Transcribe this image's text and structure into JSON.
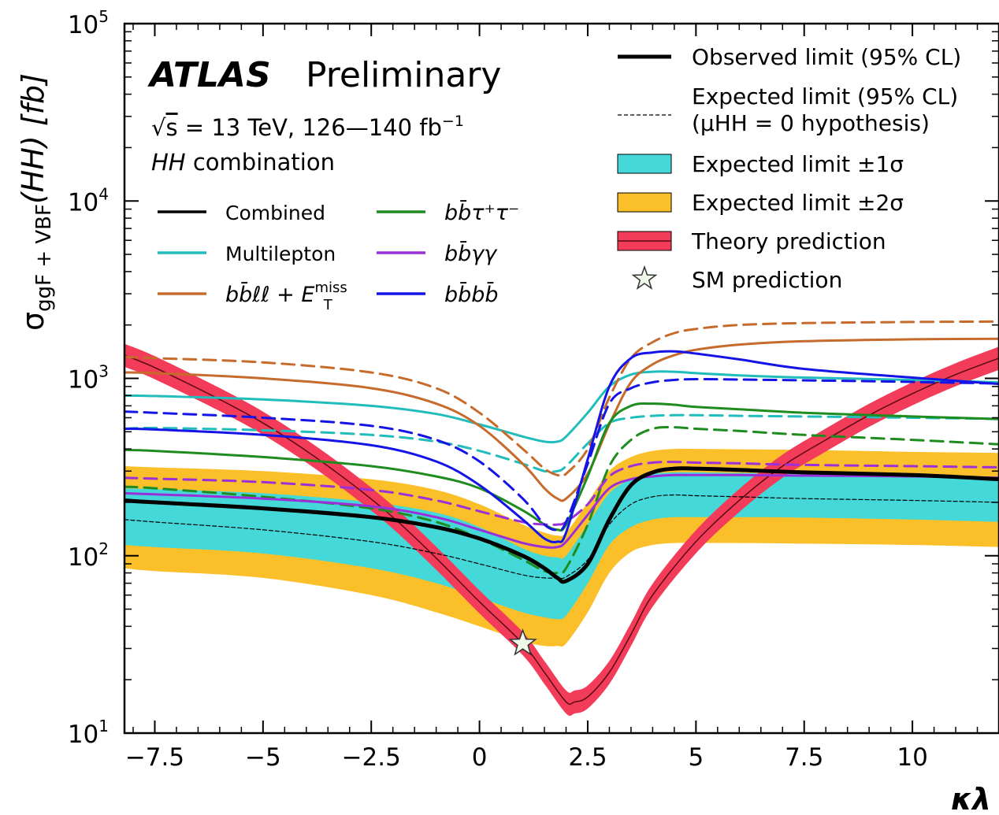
{
  "chart_data": {
    "type": "line",
    "experiment": "ATLAS",
    "status": "Preliminary",
    "energy_label": "= 13 TeV, 126—140 fb",
    "sqrt_symbol": "√",
    "sqrt_var": "s",
    "lumi_exp": "−1",
    "analysis_label": "combination",
    "analysis_italic": "HH",
    "xlabel": "κλ",
    "ylabel": "σggF + VBF(HH) [fb]",
    "ylabel_parts": {
      "sigma": "σ",
      "sub": "ggF + VBF",
      "paren": "(HH) [fb]"
    },
    "xlim": [
      -8.2,
      12.0
    ],
    "ylim": [
      10,
      100000
    ],
    "yscale": "log",
    "xticks": [
      -7.5,
      -5,
      -2.5,
      0,
      2.5,
      5,
      7.5,
      10
    ],
    "xtick_labels": [
      "−7.5",
      "−5",
      "−2.5",
      "0",
      "2.5",
      "5",
      "7.5",
      "10"
    ],
    "yticks": [
      10,
      100,
      1000,
      10000,
      100000
    ],
    "ytick_labels": [
      {
        "base": "10",
        "exp": "1"
      },
      {
        "base": "10",
        "exp": "2"
      },
      {
        "base": "10",
        "exp": "3"
      },
      {
        "base": "10",
        "exp": "4"
      },
      {
        "base": "10",
        "exp": "5"
      }
    ],
    "x": [
      -8.2,
      -7.5,
      -5,
      -2.5,
      -1,
      0,
      1,
      1.5,
      1.8,
      2,
      2.5,
      3,
      3.5,
      4,
      4.5,
      5,
      6,
      7.5,
      10,
      12
    ],
    "bands": {
      "exp_2sigma": {
        "lo": [
          85,
          82,
          75,
          60,
          48,
          40,
          33,
          31,
          31,
          32,
          48,
          80,
          105,
          115,
          118,
          118,
          118,
          117,
          115,
          112
        ],
        "hi": [
          320,
          315,
          300,
          270,
          235,
          195,
          150,
          135,
          130,
          135,
          200,
          300,
          360,
          390,
          400,
          400,
          398,
          395,
          385,
          380
        ],
        "color": "#fbbf2a"
      },
      "exp_1sigma": {
        "lo": [
          115,
          112,
          103,
          85,
          70,
          58,
          48,
          45,
          44,
          46,
          70,
          115,
          145,
          160,
          165,
          165,
          165,
          164,
          160,
          155
        ],
        "hi": [
          240,
          237,
          225,
          200,
          175,
          145,
          110,
          100,
          98,
          100,
          150,
          225,
          270,
          290,
          295,
          295,
          293,
          290,
          280,
          275
        ],
        "color": "#44d8d8"
      }
    },
    "theory": {
      "x": [
        -8.2,
        -7.5,
        -6,
        -5,
        -4,
        -3,
        -2,
        -1,
        0,
        1,
        1.5,
        2,
        2.2,
        2.5,
        3,
        3.5,
        4,
        5,
        6,
        7,
        8,
        9,
        10,
        11,
        12
      ],
      "values": [
        1350,
        1150,
        760,
        560,
        390,
        260,
        165,
        97,
        55,
        32,
        22,
        15,
        15,
        16,
        22,
        36,
        60,
        120,
        205,
        320,
        450,
        620,
        820,
        1050,
        1300
      ],
      "color": "#f23c5a"
    },
    "series": [
      {
        "name": "Observed limit (95% CL)",
        "color": "#000000",
        "style": "solid",
        "width": 5,
        "values": [
          205,
          200,
          185,
          165,
          145,
          125,
          100,
          85,
          75,
          72,
          90,
          160,
          250,
          295,
          310,
          310,
          305,
          295,
          285,
          270
        ]
      },
      {
        "name": "Expected limit (95% CL) (μHH = 0 hypothesis)",
        "color": "#000000",
        "style": "dash",
        "width": 1.2,
        "values": [
          160,
          155,
          140,
          120,
          103,
          90,
          78,
          75,
          75,
          76,
          95,
          150,
          195,
          215,
          220,
          218,
          215,
          210,
          205,
          200
        ]
      },
      {
        "name": "Multilepton",
        "color": "#21bdbd",
        "style": "solid",
        "width": 3,
        "values": [
          800,
          795,
          760,
          700,
          630,
          550,
          470,
          440,
          440,
          470,
          640,
          900,
          1050,
          1090,
          1090,
          1070,
          1040,
          1010,
          980,
          950
        ]
      },
      {
        "name": "Multilepton",
        "color": "#21bdbd",
        "style": "dash",
        "width": 3,
        "values": [
          520,
          525,
          510,
          480,
          440,
          390,
          330,
          300,
          300,
          320,
          430,
          560,
          600,
          615,
          620,
          620,
          615,
          610,
          600,
          590
        ]
      },
      {
        "name": "bbℓℓ + E_T^miss",
        "color": "#c76b2c",
        "style": "solid",
        "width": 3,
        "values": [
          1080,
          1070,
          1000,
          880,
          720,
          540,
          330,
          240,
          210,
          210,
          290,
          550,
          950,
          1200,
          1350,
          1450,
          1550,
          1620,
          1660,
          1670
        ]
      },
      {
        "name": "bbℓℓ + E_T^miss",
        "color": "#c76b2c",
        "style": "dash",
        "width": 3,
        "values": [
          1320,
          1300,
          1230,
          1080,
          880,
          640,
          400,
          310,
          285,
          290,
          400,
          780,
          1300,
          1600,
          1800,
          1900,
          2000,
          2050,
          2080,
          2090
        ]
      },
      {
        "name": "bbττ",
        "color": "#1e8c1e",
        "style": "solid",
        "width": 3,
        "values": [
          395,
          390,
          360,
          320,
          280,
          240,
          180,
          150,
          140,
          150,
          280,
          560,
          700,
          720,
          710,
          690,
          670,
          640,
          610,
          590
        ]
      },
      {
        "name": "bbττ",
        "color": "#1e8c1e",
        "style": "dash",
        "width": 3,
        "values": [
          245,
          240,
          215,
          185,
          155,
          125,
          95,
          82,
          80,
          85,
          150,
          320,
          450,
          520,
          530,
          520,
          505,
          480,
          450,
          425
        ]
      },
      {
        "name": "bbγγ",
        "color": "#9b30d9",
        "style": "solid",
        "width": 3,
        "values": [
          225,
          222,
          210,
          190,
          165,
          140,
          118,
          112,
          112,
          120,
          170,
          240,
          270,
          280,
          285,
          285,
          285,
          283,
          280,
          275
        ]
      },
      {
        "name": "bbγγ",
        "color": "#9b30d9",
        "style": "dash",
        "width": 3,
        "values": [
          275,
          272,
          260,
          235,
          205,
          178,
          155,
          150,
          150,
          155,
          195,
          280,
          320,
          335,
          338,
          335,
          332,
          325,
          320,
          315
        ]
      },
      {
        "name": "bbbb",
        "color": "#1414e6",
        "style": "solid",
        "width": 3,
        "values": [
          520,
          515,
          480,
          420,
          340,
          250,
          160,
          125,
          120,
          135,
          350,
          900,
          1300,
          1400,
          1420,
          1380,
          1280,
          1130,
          1010,
          930
        ]
      },
      {
        "name": "bbbb",
        "color": "#1414e6",
        "style": "dash",
        "width": 3,
        "values": [
          650,
          640,
          600,
          540,
          450,
          340,
          210,
          150,
          140,
          155,
          330,
          720,
          880,
          950,
          980,
          990,
          985,
          975,
          955,
          935
        ]
      }
    ],
    "sm_point": {
      "x": 1,
      "y": 32,
      "label": "SM prediction"
    },
    "legend_right": [
      {
        "key": "observed",
        "label": "Observed limit (95% CL)"
      },
      {
        "key": "expected",
        "label": "Expected limit (95% CL)",
        "label2": "(μHH = 0 hypothesis)"
      },
      {
        "key": "exp1",
        "label": "Expected limit ±1σ"
      },
      {
        "key": "exp2",
        "label": "Expected limit ±2σ"
      },
      {
        "key": "theory",
        "label": "Theory prediction"
      },
      {
        "key": "sm",
        "label": "SM prediction"
      }
    ],
    "legend_channels": [
      {
        "label": "Combined",
        "color": "#000000"
      },
      {
        "label": "bb̄τ⁺τ⁻",
        "color": "#1e8c1e"
      },
      {
        "label": "Multilepton",
        "color": "#21bdbd"
      },
      {
        "label": "bb̄γγ",
        "color": "#9b30d9"
      },
      {
        "label": "bb̄ℓℓ + E",
        "sup": "miss",
        "sub": "T",
        "color": "#c76b2c"
      },
      {
        "label": "bb̄bb̄",
        "color": "#1414e6"
      }
    ]
  }
}
